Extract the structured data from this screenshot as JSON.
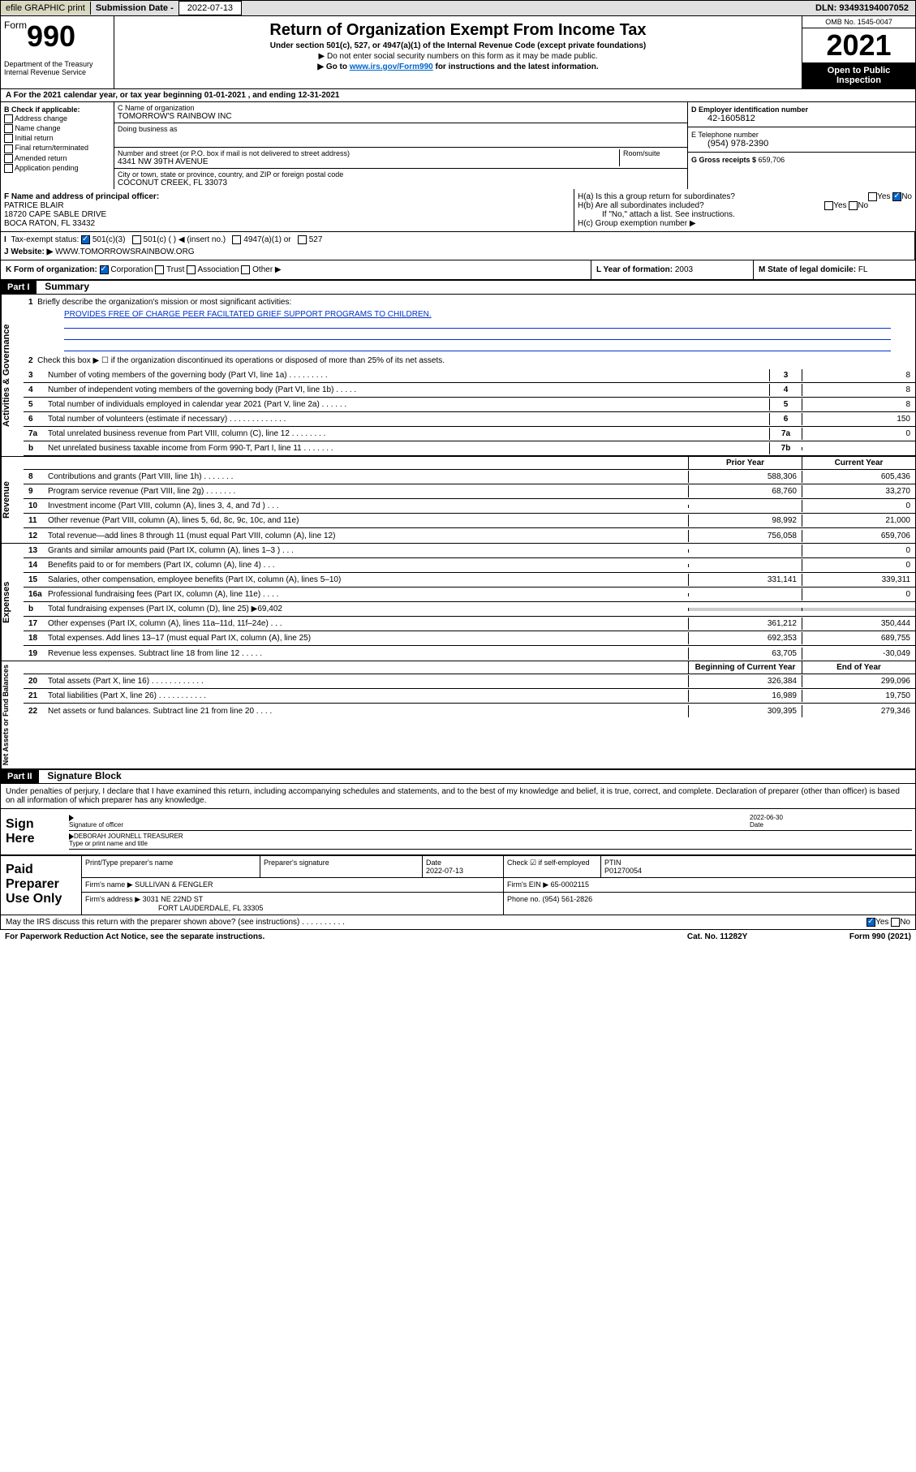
{
  "top": {
    "efile": "efile GRAPHIC print",
    "sub_label": "Submission Date - ",
    "sub_value": "2022-07-13",
    "dln": "DLN: 93493194007052"
  },
  "header": {
    "form_word": "Form",
    "form_num": "990",
    "dept": "Department of the Treasury\nInternal Revenue Service",
    "title": "Return of Organization Exempt From Income Tax",
    "sub": "Under section 501(c), 527, or 4947(a)(1) of the Internal Revenue Code (except private foundations)",
    "note1": "▶ Do not enter social security numbers on this form as it may be made public.",
    "note2_pre": "▶ Go to ",
    "note2_link": "www.irs.gov/Form990",
    "note2_post": " for instructions and the latest information.",
    "omb": "OMB No. 1545-0047",
    "year": "2021",
    "open": "Open to Public Inspection"
  },
  "section_a": "A For the 2021 calendar year, or tax year beginning 01-01-2021    , and ending 12-31-2021",
  "col_b": {
    "header": "B Check if applicable:",
    "items": [
      "Address change",
      "Name change",
      "Initial return",
      "Final return/terminated",
      "Amended return",
      "Application pending"
    ]
  },
  "col_c": {
    "name_lbl": "C Name of organization",
    "name": "TOMORROW'S RAINBOW INC",
    "dba_lbl": "Doing business as",
    "dba": "",
    "addr_lbl": "Number and street (or P.O. box if mail is not delivered to street address)",
    "room_lbl": "Room/suite",
    "addr": "4341 NW 39TH AVENUE",
    "city_lbl": "City or town, state or province, country, and ZIP or foreign postal code",
    "city": "COCONUT CREEK, FL  33073"
  },
  "col_d": {
    "ein_lbl": "D Employer identification number",
    "ein": "42-1605812",
    "tel_lbl": "E Telephone number",
    "tel": "(954) 978-2390",
    "gross_lbl": "G Gross receipts $ ",
    "gross": "659,706"
  },
  "row_f": {
    "lbl": "F Name and address of principal officer:",
    "name": "PATRICE BLAIR",
    "addr": "18720 CAPE SABLE DRIVE",
    "city": "BOCA RATON, FL  33432"
  },
  "row_h": {
    "ha": "H(a)  Is this a group return for subordinates?",
    "hb": "H(b)  Are all subordinates included?",
    "hb_note": "If \"No,\" attach a list. See instructions.",
    "hc": "H(c)  Group exemption number ▶",
    "yes": "Yes",
    "no": "No"
  },
  "row_i": {
    "lbl": "Tax-exempt status:",
    "opt1": "501(c)(3)",
    "opt2": "501(c) (   ) ◀ (insert no.)",
    "opt3": "4947(a)(1) or",
    "opt4": "527"
  },
  "row_j": {
    "lbl": "J   Website: ▶",
    "val": "WWW.TOMORROWSRAINBOW.ORG"
  },
  "row_k": {
    "lbl": "K Form of organization:",
    "opts": [
      "Corporation",
      "Trust",
      "Association",
      "Other ▶"
    ],
    "l_lbl": "L Year of formation: ",
    "l_val": "2003",
    "m_lbl": "M State of legal domicile: ",
    "m_val": "FL"
  },
  "part1": {
    "hdr": "Part I",
    "title": "Summary",
    "line1_lbl": "Briefly describe the organization's mission or most significant activities:",
    "line1_val": "PROVIDES FREE OF CHARGE PEER FACILTATED GRIEF SUPPORT PROGRAMS TO CHILDREN.",
    "line2": "Check this box ▶ ☐  if the organization discontinued its operations or disposed of more than 25% of its net assets.",
    "prior_hdr": "Prior Year",
    "curr_hdr": "Current Year",
    "begin_hdr": "Beginning of Current Year",
    "end_hdr": "End of Year"
  },
  "governance": [
    {
      "n": "3",
      "d": "Number of voting members of the governing body (Part VI, line 1a)  .    .    .    .    .    .    .    .    .",
      "b": "3",
      "v": "8"
    },
    {
      "n": "4",
      "d": "Number of independent voting members of the governing body (Part VI, line 1b)   .    .    .    .    .",
      "b": "4",
      "v": "8"
    },
    {
      "n": "5",
      "d": "Total number of individuals employed in calendar year 2021 (Part V, line 2a)    .    .    .    .    .    .",
      "b": "5",
      "v": "8"
    },
    {
      "n": "6",
      "d": "Total number of volunteers (estimate if necessary)   .    .    .    .    .    .    .    .    .    .    .    .    .",
      "b": "6",
      "v": "150"
    },
    {
      "n": "7a",
      "d": "Total unrelated business revenue from Part VIII, column (C), line 12   .    .    .    .    .    .    .    .",
      "b": "7a",
      "v": "0"
    },
    {
      "n": "b",
      "d": "Net unrelated business taxable income from Form 990-T, Part I, line 11   .    .    .    .    .    .    .",
      "b": "7b",
      "v": ""
    }
  ],
  "revenue": [
    {
      "n": "8",
      "d": "Contributions and grants (Part VIII, line 1h)   .    .    .    .    .    .    .",
      "p": "588,306",
      "c": "605,436"
    },
    {
      "n": "9",
      "d": "Program service revenue (Part VIII, line 2g)   .    .    .    .    .    .    .",
      "p": "68,760",
      "c": "33,270"
    },
    {
      "n": "10",
      "d": "Investment income (Part VIII, column (A), lines 3, 4, and 7d )   .    .    .",
      "p": "",
      "c": "0"
    },
    {
      "n": "11",
      "d": "Other revenue (Part VIII, column (A), lines 5, 6d, 8c, 9c, 10c, and 11e)",
      "p": "98,992",
      "c": "21,000"
    },
    {
      "n": "12",
      "d": "Total revenue—add lines 8 through 11 (must equal Part VIII, column (A), line 12)",
      "p": "756,058",
      "c": "659,706"
    }
  ],
  "expenses": [
    {
      "n": "13",
      "d": "Grants and similar amounts paid (Part IX, column (A), lines 1–3 )   .    .    .",
      "p": "",
      "c": "0"
    },
    {
      "n": "14",
      "d": "Benefits paid to or for members (Part IX, column (A), line 4)   .    .    .",
      "p": "",
      "c": "0"
    },
    {
      "n": "15",
      "d": "Salaries, other compensation, employee benefits (Part IX, column (A), lines 5–10)",
      "p": "331,141",
      "c": "339,311"
    },
    {
      "n": "16a",
      "d": "Professional fundraising fees (Part IX, column (A), line 11e)   .    .    .    .",
      "p": "",
      "c": "0"
    },
    {
      "n": "b",
      "d": "Total fundraising expenses (Part IX, column (D), line 25) ▶69,402",
      "p": "shaded",
      "c": "shaded"
    },
    {
      "n": "17",
      "d": "Other expenses (Part IX, column (A), lines 11a–11d, 11f–24e)   .    .    .",
      "p": "361,212",
      "c": "350,444"
    },
    {
      "n": "18",
      "d": "Total expenses. Add lines 13–17 (must equal Part IX, column (A), line 25)",
      "p": "692,353",
      "c": "689,755"
    },
    {
      "n": "19",
      "d": "Revenue less expenses. Subtract line 18 from line 12   .    .    .    .    .",
      "p": "63,705",
      "c": "-30,049"
    }
  ],
  "netassets": [
    {
      "n": "20",
      "d": "Total assets (Part X, line 16)   .    .    .    .    .    .    .    .    .    .    .    .",
      "p": "326,384",
      "c": "299,096"
    },
    {
      "n": "21",
      "d": "Total liabilities (Part X, line 26)   .    .    .    .    .    .    .    .    .    .    .",
      "p": "16,989",
      "c": "19,750"
    },
    {
      "n": "22",
      "d": "Net assets or fund balances. Subtract line 21 from line 20   .    .    .    .",
      "p": "309,395",
      "c": "279,346"
    }
  ],
  "part2": {
    "hdr": "Part II",
    "title": "Signature Block",
    "declaration": "Under penalties of perjury, I declare that I have examined this return, including accompanying schedules and statements, and to the best of my knowledge and belief, it is true, correct, and complete. Declaration of preparer (other than officer) is based on all information of which preparer has any knowledge."
  },
  "sign": {
    "here": "Sign Here",
    "sig_lbl": "Signature of officer",
    "date_lbl": "Date",
    "date": "2022-06-30",
    "name": "DEBORAH JOURNELL TREASURER",
    "name_lbl": "Type or print name and title"
  },
  "paid": {
    "hdr": "Paid Preparer Use Only",
    "c1": "Print/Type preparer's name",
    "c2": "Preparer's signature",
    "c3": "Date",
    "c3v": "2022-07-13",
    "c4": "Check ☑ if self-employed",
    "c5": "PTIN",
    "c5v": "P01270054",
    "firm_lbl": "Firm's name     ▶",
    "firm": "SULLIVAN & FENGLER",
    "ein_lbl": "Firm's EIN ▶",
    "ein": "65-0002115",
    "addr_lbl": "Firm's address ▶",
    "addr1": "3031 NE 22ND ST",
    "addr2": "FORT LAUDERDALE, FL  33305",
    "phone_lbl": "Phone no. ",
    "phone": "(954) 561-2826"
  },
  "footer": {
    "discuss": "May the IRS discuss this return with the preparer shown above? (see instructions)   .    .    .    .    .    .    .    .    .    .",
    "yes": "Yes",
    "no": "No",
    "paperwork": "For Paperwork Reduction Act Notice, see the separate instructions.",
    "cat": "Cat. No. 11282Y",
    "form": "Form 990 (2021)"
  },
  "vert_labels": {
    "gov": "Activities & Governance",
    "rev": "Revenue",
    "exp": "Expenses",
    "net": "Net Assets or Fund Balances"
  }
}
